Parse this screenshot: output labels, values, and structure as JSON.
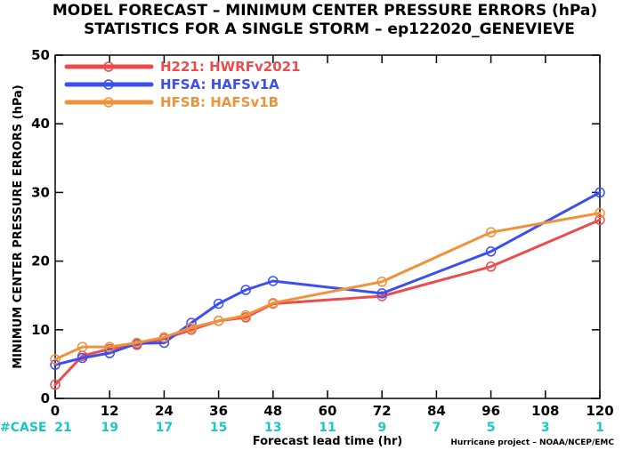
{
  "chart_data": {
    "type": "line",
    "title_line1": "MODEL FORECAST – MINIMUM CENTER PRESSURE ERRORS (hPa)",
    "title_line2": "STATISTICS FOR A SINGLE STORM – ep122020_GENEVIEVE",
    "xlabel": "Forecast lead time (hr)",
    "ylabel": "MINIMUM CENTER PRESSURE ERRORS (hPa)",
    "credit": "Hurricane project – NOAA/NCEP/EMC",
    "xlim": [
      0,
      120
    ],
    "ylim": [
      0,
      50
    ],
    "xticks": [
      0,
      12,
      24,
      36,
      48,
      60,
      72,
      84,
      96,
      108,
      120
    ],
    "yticks": [
      0,
      10,
      20,
      30,
      40,
      50
    ],
    "case_label": "#CASE",
    "cases": [
      21,
      19,
      17,
      15,
      13,
      11,
      9,
      7,
      5,
      3,
      1
    ],
    "grid": false,
    "legend_position": "top-left",
    "series": [
      {
        "name": "H221: HWRFv2021",
        "color": "#ee4c4c",
        "x": [
          0,
          6,
          12,
          18,
          24,
          30,
          36,
          42,
          48,
          72,
          96,
          120
        ],
        "y": [
          2.0,
          6.2,
          7.2,
          7.8,
          8.7,
          10.0,
          11.3,
          11.8,
          13.8,
          14.9,
          19.2,
          26.0
        ]
      },
      {
        "name": "HFSA: HAFSv1A",
        "color": "#3b4ef0",
        "x": [
          0,
          6,
          12,
          18,
          24,
          30,
          36,
          42,
          48,
          72,
          96,
          120
        ],
        "y": [
          4.9,
          5.9,
          6.6,
          8.0,
          8.1,
          11.0,
          13.8,
          15.8,
          17.1,
          15.3,
          21.4,
          30.0
        ]
      },
      {
        "name": "HFSB: HAFSv1B",
        "color": "#f0923a",
        "x": [
          0,
          6,
          12,
          18,
          24,
          30,
          36,
          42,
          48,
          72,
          96,
          120
        ],
        "y": [
          5.7,
          7.5,
          7.5,
          8.1,
          8.9,
          10.3,
          11.3,
          12.1,
          13.9,
          17.0,
          24.2,
          27.0
        ]
      }
    ]
  }
}
